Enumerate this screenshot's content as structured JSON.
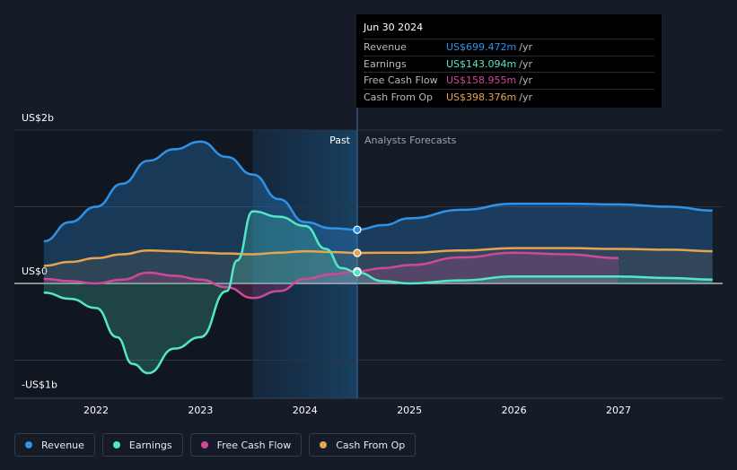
{
  "chart_data": {
    "type": "area",
    "y_unit_labels": [
      "US$2b",
      "US$0",
      "-US$1b"
    ],
    "ylim": [
      -1.5,
      2.0
    ],
    "xlim": [
      2021.5,
      2027.9
    ],
    "x_ticks": [
      "2022",
      "2023",
      "2024",
      "2025",
      "2026",
      "2027"
    ],
    "x_tick_values": [
      2022,
      2023,
      2024,
      2025,
      2026,
      2027
    ],
    "past_label": "Past",
    "forecast_label": "Analysts Forecasts",
    "divider_x": 2024.5,
    "highlight_start": 2023.5,
    "series": [
      {
        "name": "Revenue",
        "color": "#2e93e8",
        "x": [
          2021.5,
          2021.75,
          2022.0,
          2022.25,
          2022.5,
          2022.75,
          2023.0,
          2023.25,
          2023.5,
          2023.75,
          2024.0,
          2024.25,
          2024.5,
          2024.75,
          2025.0,
          2025.5,
          2026.0,
          2026.5,
          2027.0,
          2027.5,
          2027.9
        ],
        "values": [
          0.55,
          0.8,
          1.0,
          1.3,
          1.6,
          1.75,
          1.85,
          1.65,
          1.42,
          1.1,
          0.8,
          0.72,
          0.7,
          0.76,
          0.85,
          0.96,
          1.04,
          1.04,
          1.03,
          1.0,
          0.95
        ]
      },
      {
        "name": "Earnings",
        "color": "#52e8c6",
        "x": [
          2021.5,
          2021.75,
          2022.0,
          2022.2,
          2022.35,
          2022.5,
          2022.75,
          2023.0,
          2023.25,
          2023.35,
          2023.5,
          2023.75,
          2024.0,
          2024.2,
          2024.35,
          2024.5,
          2024.75,
          2025.0,
          2025.5,
          2026.0,
          2026.5,
          2027.0,
          2027.5,
          2027.9
        ],
        "values": [
          -0.12,
          -0.2,
          -0.32,
          -0.7,
          -1.05,
          -1.17,
          -0.85,
          -0.7,
          -0.1,
          0.3,
          0.94,
          0.87,
          0.75,
          0.45,
          0.2,
          0.143,
          0.03,
          0.0,
          0.04,
          0.09,
          0.09,
          0.09,
          0.07,
          0.05
        ]
      },
      {
        "name": "Free Cash Flow",
        "color": "#d0489a",
        "x": [
          2021.5,
          2021.75,
          2022.0,
          2022.25,
          2022.5,
          2022.75,
          2023.0,
          2023.25,
          2023.5,
          2023.75,
          2024.0,
          2024.25,
          2024.5,
          2024.75,
          2025.0,
          2025.5,
          2026.0,
          2026.5,
          2027.0
        ],
        "values": [
          0.06,
          0.03,
          0.0,
          0.05,
          0.14,
          0.1,
          0.05,
          -0.05,
          -0.19,
          -0.1,
          0.06,
          0.12,
          0.159,
          0.2,
          0.24,
          0.34,
          0.4,
          0.38,
          0.33
        ]
      },
      {
        "name": "Cash From Op",
        "color": "#e8a34f",
        "x": [
          2021.5,
          2021.75,
          2022.0,
          2022.25,
          2022.5,
          2022.75,
          2023.0,
          2023.25,
          2023.5,
          2023.75,
          2024.0,
          2024.25,
          2024.5,
          2024.75,
          2025.0,
          2025.5,
          2026.0,
          2026.5,
          2027.0,
          2027.5,
          2027.9
        ],
        "values": [
          0.23,
          0.28,
          0.33,
          0.38,
          0.43,
          0.42,
          0.4,
          0.39,
          0.38,
          0.4,
          0.42,
          0.41,
          0.398,
          0.4,
          0.4,
          0.43,
          0.46,
          0.46,
          0.45,
          0.44,
          0.42
        ]
      }
    ]
  },
  "tooltip": {
    "date": "Jun 30 2024",
    "rows": [
      {
        "label": "Revenue",
        "value": "US$699.472m",
        "unit": "/yr",
        "color": "#2e93e8"
      },
      {
        "label": "Earnings",
        "value": "US$143.094m",
        "unit": "/yr",
        "color": "#52e8c6"
      },
      {
        "label": "Free Cash Flow",
        "value": "US$158.955m",
        "unit": "/yr",
        "color": "#d0489a"
      },
      {
        "label": "Cash From Op",
        "value": "US$398.376m",
        "unit": "/yr",
        "color": "#e8a34f"
      }
    ]
  },
  "legend": [
    {
      "label": "Revenue",
      "color": "#2e93e8"
    },
    {
      "label": "Earnings",
      "color": "#52e8c6"
    },
    {
      "label": "Free Cash Flow",
      "color": "#d0489a"
    },
    {
      "label": "Cash From Op",
      "color": "#e8a34f"
    }
  ]
}
